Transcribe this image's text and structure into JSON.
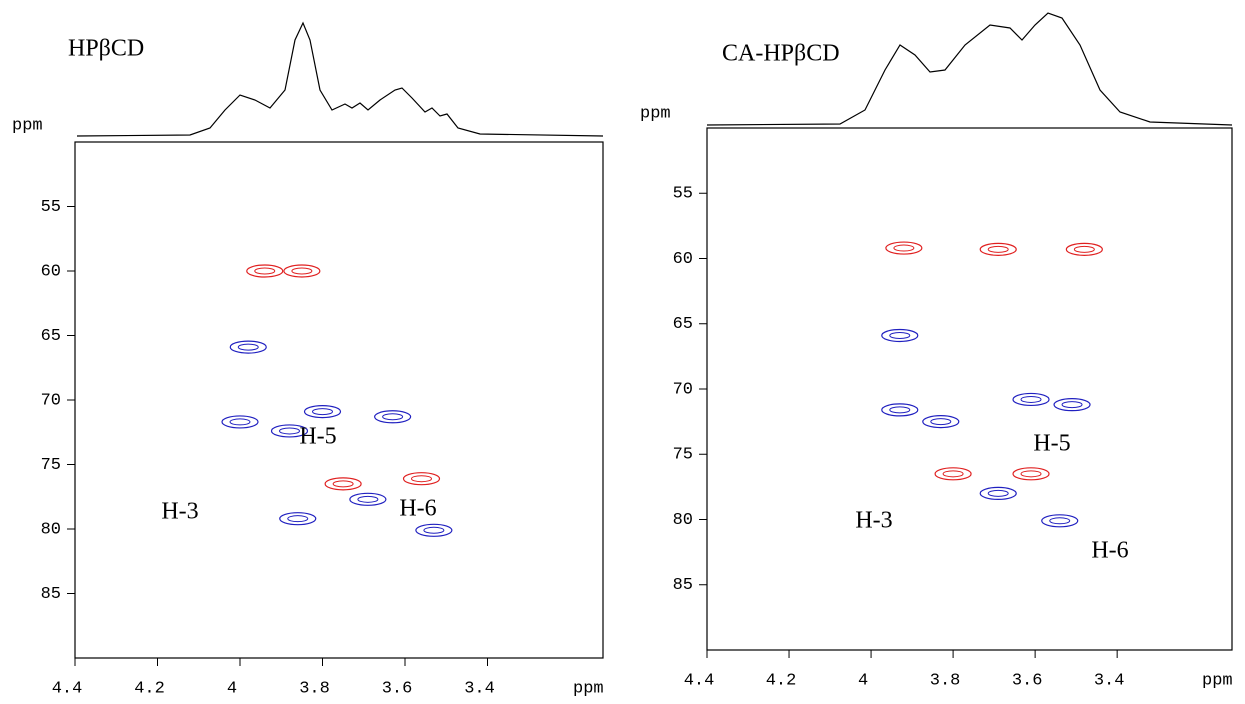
{
  "chart_data": [
    {
      "type": "contour",
      "title": "HPβCD",
      "xlabel": "ppm",
      "ylabel": "ppm",
      "xlim": [
        4.4,
        3.12
      ],
      "ylim": [
        50,
        90
      ],
      "xticks": [
        4.4,
        4.2,
        4.0,
        3.8,
        3.6,
        3.4
      ],
      "yticks": [
        55,
        60,
        65,
        70,
        75,
        80,
        85
      ],
      "series": [
        {
          "color": "#e02020",
          "x": [
            3.85,
            3.94,
            3.75,
            3.56
          ],
          "values": [
            60,
            60,
            76.5,
            76.1
          ]
        },
        {
          "color": "#2020c0",
          "x": [
            3.98,
            4.0,
            3.8,
            3.88,
            3.63,
            3.69,
            3.86,
            3.53
          ],
          "values": [
            65.9,
            71.7,
            70.9,
            72.4,
            71.3,
            77.7,
            79.2,
            80.1
          ]
        }
      ],
      "annotations": [
        "H-3",
        "H-5",
        "H-6"
      ]
    },
    {
      "type": "contour",
      "title": "CA-HPβCD",
      "xlabel": "ppm",
      "ylabel": "ppm",
      "xlim": [
        4.4,
        3.12
      ],
      "ylim": [
        50,
        90
      ],
      "xticks": [
        4.4,
        4.2,
        4.0,
        3.8,
        3.6,
        3.4
      ],
      "yticks": [
        55,
        60,
        65,
        70,
        75,
        80,
        85
      ],
      "series": [
        {
          "color": "#e02020",
          "x": [
            3.92,
            3.69,
            3.48,
            3.8,
            3.61
          ],
          "values": [
            59.2,
            59.3,
            59.3,
            76.5,
            76.5
          ]
        },
        {
          "color": "#2020c0",
          "x": [
            3.93,
            3.93,
            3.83,
            3.61,
            3.51,
            3.69,
            3.54
          ],
          "values": [
            65.9,
            71.6,
            72.5,
            70.8,
            71.2,
            78,
            80.1
          ]
        }
      ],
      "annotations": [
        "H-3",
        "H-5",
        "H-6"
      ]
    }
  ]
}
